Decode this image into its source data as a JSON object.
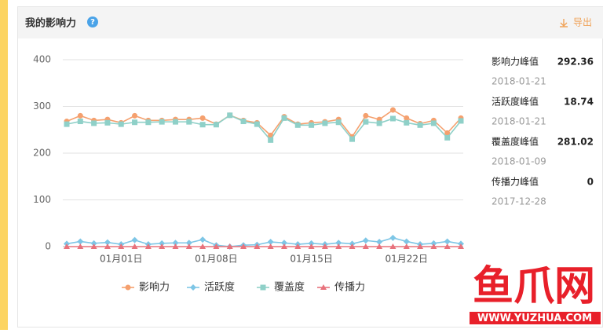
{
  "header": {
    "title": "我的影响力",
    "help": "?",
    "export": "导出"
  },
  "chart_data": {
    "type": "line",
    "categories": [
      null,
      null,
      null,
      null,
      "01月01日",
      null,
      null,
      null,
      null,
      null,
      null,
      "01月08日",
      null,
      null,
      null,
      null,
      null,
      null,
      "01月15日",
      null,
      null,
      null,
      null,
      null,
      null,
      "01月22日",
      null,
      null,
      null,
      null
    ],
    "series": [
      {
        "name": "影响力",
        "color": "#f5a06e",
        "marker": "circle",
        "values": [
          268,
          280,
          270,
          272,
          265,
          280,
          270,
          270,
          272,
          272,
          275,
          262,
          281,
          270,
          265,
          238,
          278,
          262,
          265,
          267,
          272,
          235,
          280,
          272,
          292.36,
          275,
          263,
          270,
          243,
          275
        ]
      },
      {
        "name": "活跃度",
        "color": "#7ec6e6",
        "marker": "diamond",
        "values": [
          6,
          11,
          7,
          9,
          5,
          14,
          5,
          7,
          8,
          8,
          15,
          3,
          0,
          3,
          4,
          10,
          8,
          5,
          7,
          5,
          8,
          6,
          13,
          10,
          18.74,
          11,
          5,
          7,
          11,
          6
        ]
      },
      {
        "name": "覆盖度",
        "color": "#8fd0c8",
        "marker": "square",
        "values": [
          262,
          268,
          264,
          265,
          262,
          266,
          266,
          267,
          267,
          267,
          261,
          261,
          281.02,
          268,
          262,
          228,
          275,
          260,
          260,
          264,
          266,
          230,
          267,
          264,
          274,
          265,
          260,
          264,
          233,
          269
        ]
      },
      {
        "name": "传播力",
        "color": "#e8727c",
        "marker": "triangle",
        "values": [
          0,
          0,
          0,
          0,
          0,
          0,
          0,
          0,
          0,
          0,
          0,
          0,
          0,
          0,
          0,
          0,
          0,
          0,
          0,
          0,
          0,
          0,
          0,
          0,
          0,
          0,
          0,
          0,
          0,
          0
        ]
      }
    ],
    "ylim": [
      0,
      400
    ],
    "yticks": [
      0,
      100,
      200,
      300,
      400
    ],
    "grid": true
  },
  "stats": [
    {
      "label": "影响力峰值",
      "value": 292.36,
      "date": "2018-01-21"
    },
    {
      "label": "活跃度峰值",
      "value": 18.74,
      "date": "2018-01-21"
    },
    {
      "label": "覆盖度峰值",
      "value": 281.02,
      "date": "2018-01-09"
    },
    {
      "label": "传播力峰值",
      "value": 0,
      "date": "2017-12-28"
    }
  ],
  "watermark": {
    "brand": "鱼爪网",
    "url": "WWW.YUZHUA.COM"
  }
}
